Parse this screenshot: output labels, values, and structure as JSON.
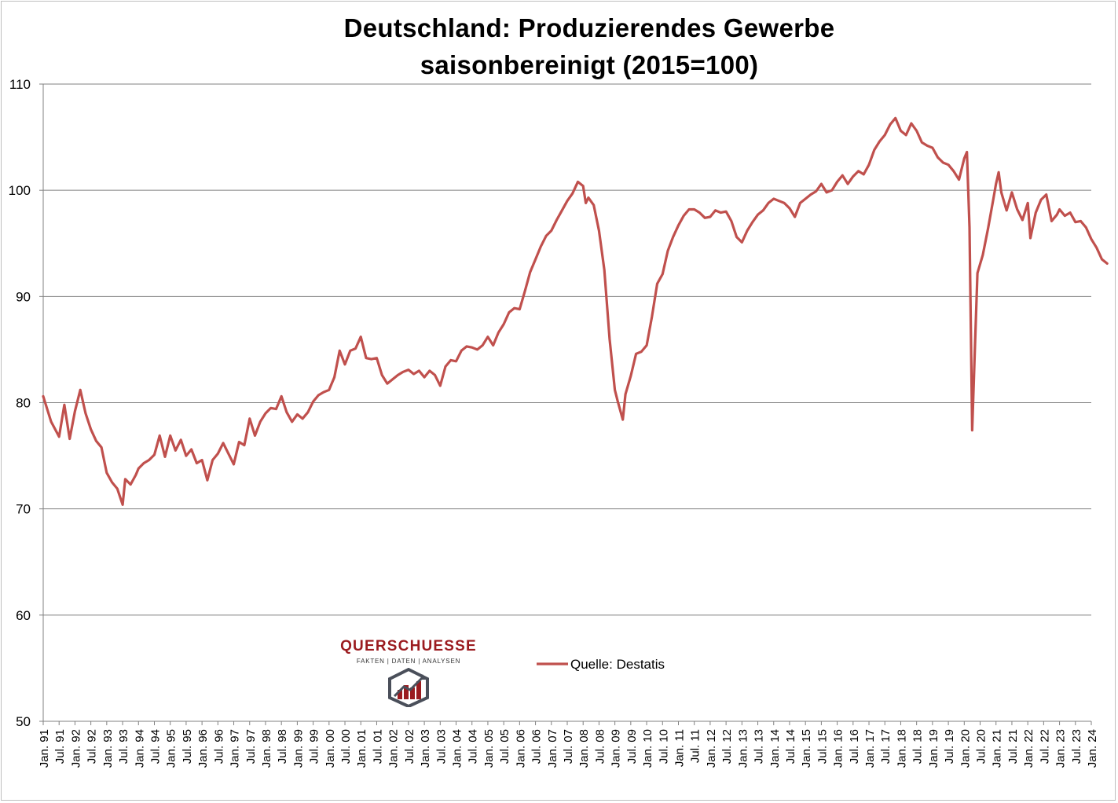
{
  "chart_data": {
    "type": "line",
    "title_lines": [
      "Deutschland: Produzierendes Gewerbe",
      "saisonbereinigt (2015=100)"
    ],
    "xlabel": "",
    "ylabel": "",
    "ylim": [
      50,
      110
    ],
    "yticks": [
      50,
      60,
      70,
      80,
      90,
      100,
      110
    ],
    "xticks": [
      "Jan. 91",
      "Jul. 91",
      "Jan. 92",
      "Jul. 92",
      "Jan. 93",
      "Jul. 93",
      "Jan. 94",
      "Jul. 94",
      "Jan. 95",
      "Jul. 95",
      "Jan. 96",
      "Jul. 96",
      "Jan. 97",
      "Jul. 97",
      "Jan. 98",
      "Jul. 98",
      "Jan. 99",
      "Jul. 99",
      "Jan. 00",
      "Jul. 00",
      "Jan. 01",
      "Jul. 01",
      "Jan. 02",
      "Jul. 02",
      "Jan. 03",
      "Jul. 03",
      "Jan. 04",
      "Jul. 04",
      "Jan. 05",
      "Jul. 05",
      "Jan. 06",
      "Jul. 06",
      "Jan. 07",
      "Jul. 07",
      "Jan. 08",
      "Jul. 08",
      "Jan. 09",
      "Jul. 09",
      "Jan. 10",
      "Jul. 10",
      "Jan. 11",
      "Jul. 11",
      "Jan. 12",
      "Jul. 12",
      "Jan. 13",
      "Jul. 13",
      "Jan. 14",
      "Jul. 14",
      "Jan. 15",
      "Jul. 15",
      "Jan. 16",
      "Jul. 16",
      "Jan. 17",
      "Jul. 17",
      "Jan. 18",
      "Jul. 18",
      "Jan. 19",
      "Jul. 19",
      "Jan. 20",
      "Jul. 20",
      "Jan. 21",
      "Jul. 21",
      "Jan. 22",
      "Jul. 22",
      "Jan. 23",
      "Jul. 23",
      "Jan. 24"
    ],
    "grid": true,
    "legend_position": "bottom-center",
    "series": [
      {
        "name": "Quelle: Destatis",
        "color": "#c0504d",
        "points": [
          [
            "1991-01",
            80.6
          ],
          [
            "1991-04",
            78.2
          ],
          [
            "1991-07",
            76.8
          ],
          [
            "1991-09",
            79.8
          ],
          [
            "1991-11",
            76.6
          ],
          [
            "1992-01",
            79.2
          ],
          [
            "1992-03",
            81.2
          ],
          [
            "1992-05",
            79.0
          ],
          [
            "1992-07",
            77.5
          ],
          [
            "1992-09",
            76.4
          ],
          [
            "1992-11",
            75.8
          ],
          [
            "1993-01",
            73.4
          ],
          [
            "1993-03",
            72.5
          ],
          [
            "1993-05",
            71.9
          ],
          [
            "1993-07",
            70.4
          ],
          [
            "1993-08",
            72.8
          ],
          [
            "1993-10",
            72.3
          ],
          [
            "1993-12",
            73.2
          ],
          [
            "1994-01",
            73.8
          ],
          [
            "1994-03",
            74.3
          ],
          [
            "1994-05",
            74.6
          ],
          [
            "1994-07",
            75.1
          ],
          [
            "1994-09",
            76.9
          ],
          [
            "1994-11",
            74.9
          ],
          [
            "1995-01",
            76.9
          ],
          [
            "1995-03",
            75.5
          ],
          [
            "1995-05",
            76.5
          ],
          [
            "1995-07",
            75.0
          ],
          [
            "1995-09",
            75.6
          ],
          [
            "1995-11",
            74.3
          ],
          [
            "1996-01",
            74.6
          ],
          [
            "1996-03",
            72.7
          ],
          [
            "1996-05",
            74.6
          ],
          [
            "1996-07",
            75.2
          ],
          [
            "1996-09",
            76.2
          ],
          [
            "1996-11",
            75.2
          ],
          [
            "1997-01",
            74.2
          ],
          [
            "1997-03",
            76.3
          ],
          [
            "1997-05",
            76.0
          ],
          [
            "1997-07",
            78.5
          ],
          [
            "1997-09",
            76.9
          ],
          [
            "1997-11",
            78.2
          ],
          [
            "1998-01",
            79.0
          ],
          [
            "1998-03",
            79.5
          ],
          [
            "1998-05",
            79.4
          ],
          [
            "1998-07",
            80.6
          ],
          [
            "1998-09",
            79.1
          ],
          [
            "1998-11",
            78.2
          ],
          [
            "1999-01",
            78.9
          ],
          [
            "1999-03",
            78.5
          ],
          [
            "1999-05",
            79.1
          ],
          [
            "1999-07",
            80.1
          ],
          [
            "1999-09",
            80.7
          ],
          [
            "1999-11",
            81.0
          ],
          [
            "2000-01",
            81.2
          ],
          [
            "2000-03",
            82.4
          ],
          [
            "2000-05",
            84.9
          ],
          [
            "2000-07",
            83.6
          ],
          [
            "2000-09",
            84.9
          ],
          [
            "2000-11",
            85.1
          ],
          [
            "2001-01",
            86.2
          ],
          [
            "2001-03",
            84.2
          ],
          [
            "2001-05",
            84.1
          ],
          [
            "2001-07",
            84.2
          ],
          [
            "2001-09",
            82.6
          ],
          [
            "2001-11",
            81.8
          ],
          [
            "2002-01",
            82.2
          ],
          [
            "2002-03",
            82.6
          ],
          [
            "2002-05",
            82.9
          ],
          [
            "2002-07",
            83.1
          ],
          [
            "2002-09",
            82.7
          ],
          [
            "2002-11",
            83.0
          ],
          [
            "2003-01",
            82.4
          ],
          [
            "2003-03",
            83.0
          ],
          [
            "2003-05",
            82.6
          ],
          [
            "2003-07",
            81.6
          ],
          [
            "2003-09",
            83.4
          ],
          [
            "2003-11",
            84.0
          ],
          [
            "2004-01",
            83.9
          ],
          [
            "2004-03",
            84.9
          ],
          [
            "2004-05",
            85.3
          ],
          [
            "2004-07",
            85.2
          ],
          [
            "2004-09",
            85.0
          ],
          [
            "2004-11",
            85.4
          ],
          [
            "2005-01",
            86.2
          ],
          [
            "2005-03",
            85.4
          ],
          [
            "2005-05",
            86.6
          ],
          [
            "2005-07",
            87.4
          ],
          [
            "2005-09",
            88.5
          ],
          [
            "2005-11",
            88.9
          ],
          [
            "2006-01",
            88.8
          ],
          [
            "2006-03",
            90.5
          ],
          [
            "2006-05",
            92.3
          ],
          [
            "2006-07",
            93.5
          ],
          [
            "2006-09",
            94.7
          ],
          [
            "2006-11",
            95.7
          ],
          [
            "2007-01",
            96.2
          ],
          [
            "2007-03",
            97.2
          ],
          [
            "2007-05",
            98.1
          ],
          [
            "2007-07",
            99.0
          ],
          [
            "2007-09",
            99.7
          ],
          [
            "2007-11",
            100.8
          ],
          [
            "2008-01",
            100.4
          ],
          [
            "2008-02",
            98.8
          ],
          [
            "2008-03",
            99.3
          ],
          [
            "2008-05",
            98.6
          ],
          [
            "2008-07",
            96.2
          ],
          [
            "2008-09",
            92.5
          ],
          [
            "2008-11",
            86.0
          ],
          [
            "2009-01",
            81.2
          ],
          [
            "2009-02",
            80.2
          ],
          [
            "2009-04",
            78.4
          ],
          [
            "2009-05",
            80.8
          ],
          [
            "2009-07",
            82.5
          ],
          [
            "2009-09",
            84.6
          ],
          [
            "2009-11",
            84.8
          ],
          [
            "2010-01",
            85.4
          ],
          [
            "2010-03",
            88.1
          ],
          [
            "2010-05",
            91.2
          ],
          [
            "2010-07",
            92.1
          ],
          [
            "2010-09",
            94.3
          ],
          [
            "2010-11",
            95.6
          ],
          [
            "2011-01",
            96.7
          ],
          [
            "2011-03",
            97.6
          ],
          [
            "2011-05",
            98.2
          ],
          [
            "2011-07",
            98.2
          ],
          [
            "2011-09",
            97.9
          ],
          [
            "2011-11",
            97.4
          ],
          [
            "2012-01",
            97.5
          ],
          [
            "2012-03",
            98.1
          ],
          [
            "2012-05",
            97.9
          ],
          [
            "2012-07",
            98.0
          ],
          [
            "2012-09",
            97.1
          ],
          [
            "2012-11",
            95.6
          ],
          [
            "2013-01",
            95.1
          ],
          [
            "2013-03",
            96.2
          ],
          [
            "2013-05",
            97.0
          ],
          [
            "2013-07",
            97.7
          ],
          [
            "2013-09",
            98.1
          ],
          [
            "2013-11",
            98.8
          ],
          [
            "2014-01",
            99.2
          ],
          [
            "2014-03",
            99.0
          ],
          [
            "2014-05",
            98.8
          ],
          [
            "2014-07",
            98.3
          ],
          [
            "2014-09",
            97.5
          ],
          [
            "2014-11",
            98.8
          ],
          [
            "2015-01",
            99.2
          ],
          [
            "2015-03",
            99.6
          ],
          [
            "2015-05",
            99.9
          ],
          [
            "2015-07",
            100.6
          ],
          [
            "2015-09",
            99.8
          ],
          [
            "2015-11",
            100.0
          ],
          [
            "2016-01",
            100.8
          ],
          [
            "2016-03",
            101.4
          ],
          [
            "2016-05",
            100.6
          ],
          [
            "2016-07",
            101.3
          ],
          [
            "2016-09",
            101.8
          ],
          [
            "2016-11",
            101.5
          ],
          [
            "2017-01",
            102.4
          ],
          [
            "2017-03",
            103.8
          ],
          [
            "2017-05",
            104.6
          ],
          [
            "2017-07",
            105.2
          ],
          [
            "2017-09",
            106.2
          ],
          [
            "2017-11",
            106.8
          ],
          [
            "2018-01",
            105.6
          ],
          [
            "2018-03",
            105.2
          ],
          [
            "2018-05",
            106.3
          ],
          [
            "2018-07",
            105.6
          ],
          [
            "2018-09",
            104.5
          ],
          [
            "2018-11",
            104.2
          ],
          [
            "2019-01",
            104.0
          ],
          [
            "2019-03",
            103.1
          ],
          [
            "2019-05",
            102.6
          ],
          [
            "2019-07",
            102.4
          ],
          [
            "2019-09",
            101.8
          ],
          [
            "2019-11",
            101.0
          ],
          [
            "2020-01",
            103.0
          ],
          [
            "2020-02",
            103.6
          ],
          [
            "2020-03",
            96.5
          ],
          [
            "2020-04",
            77.4
          ],
          [
            "2020-05",
            85.0
          ],
          [
            "2020-06",
            92.2
          ],
          [
            "2020-08",
            93.9
          ],
          [
            "2020-10",
            96.4
          ],
          [
            "2020-12",
            99.2
          ],
          [
            "2021-01",
            100.6
          ],
          [
            "2021-02",
            101.7
          ],
          [
            "2021-03",
            99.8
          ],
          [
            "2021-05",
            98.1
          ],
          [
            "2021-07",
            99.8
          ],
          [
            "2021-09",
            98.2
          ],
          [
            "2021-11",
            97.2
          ],
          [
            "2022-01",
            98.8
          ],
          [
            "2022-02",
            95.5
          ],
          [
            "2022-04",
            97.9
          ],
          [
            "2022-06",
            99.1
          ],
          [
            "2022-08",
            99.6
          ],
          [
            "2022-10",
            97.1
          ],
          [
            "2022-12",
            97.7
          ],
          [
            "2023-01",
            98.2
          ],
          [
            "2023-03",
            97.6
          ],
          [
            "2023-05",
            97.9
          ],
          [
            "2023-07",
            97.0
          ],
          [
            "2023-09",
            97.1
          ],
          [
            "2023-11",
            96.5
          ],
          [
            "2024-01",
            95.4
          ],
          [
            "2024-03",
            94.6
          ],
          [
            "2024-05",
            93.5
          ],
          [
            "2024-07",
            93.1
          ]
        ]
      }
    ]
  },
  "logo": {
    "word": "QUERSCHUESSE",
    "tagline": "FAKTEN | DATEN | ANALYSEN",
    "icon": "hexagon-chart-icon",
    "accent": "#9b1b1f"
  }
}
